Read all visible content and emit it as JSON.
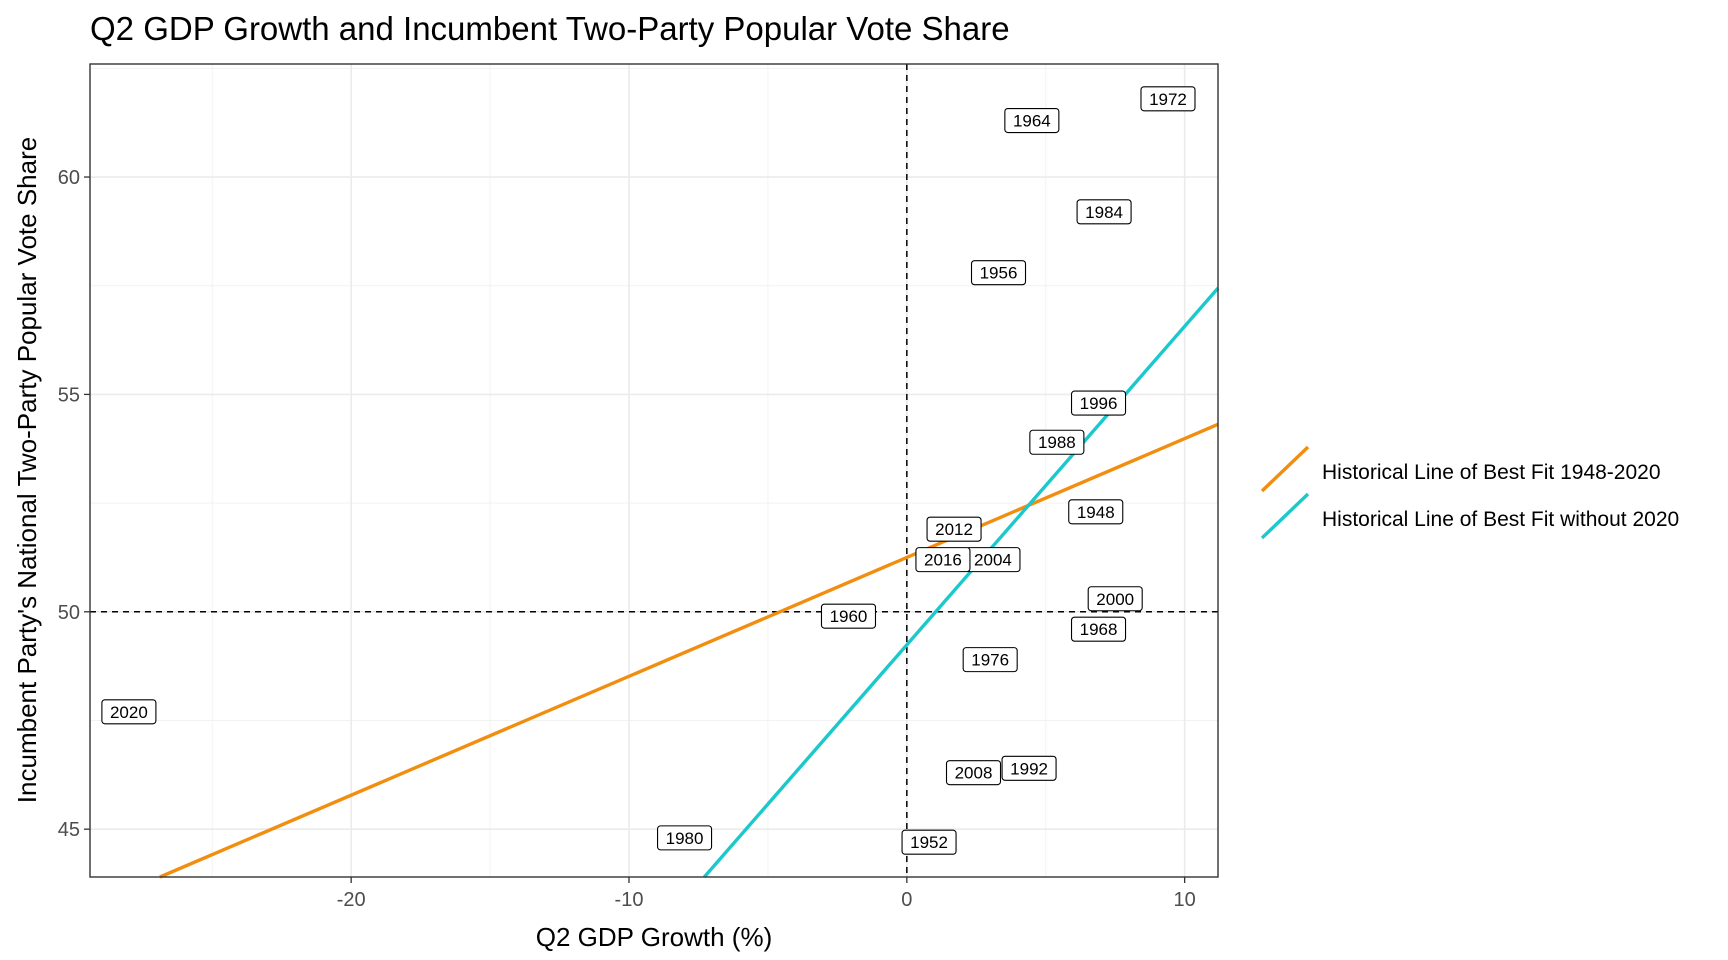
{
  "chart_data": {
    "type": "scatter",
    "title": "Q2 GDP Growth and Incumbent Two-Party Popular Vote Share",
    "xlabel": "Q2 GDP Growth (%)",
    "ylabel": "Incumbent Party's National Two-Party Popular Vote Share",
    "xlim": [
      -29.4,
      11.2
    ],
    "ylim": [
      43.9,
      62.6
    ],
    "x_ticks": [
      {
        "value": -20,
        "label": "-20"
      },
      {
        "value": -10,
        "label": "-10"
      },
      {
        "value": 0,
        "label": "0"
      },
      {
        "value": 10,
        "label": "10"
      }
    ],
    "y_ticks": [
      {
        "value": 45,
        "label": "45"
      },
      {
        "value": 50,
        "label": "50"
      },
      {
        "value": 55,
        "label": "55"
      },
      {
        "value": 60,
        "label": "60"
      }
    ],
    "grid": true,
    "reference_lines": {
      "vertical_x": 0,
      "horizontal_y": 50,
      "style": "dashed"
    },
    "points": [
      {
        "label": "1948",
        "x": 6.8,
        "y": 52.3
      },
      {
        "label": "1952",
        "x": 0.8,
        "y": 44.7
      },
      {
        "label": "1956",
        "x": 3.3,
        "y": 57.8
      },
      {
        "label": "1960",
        "x": -2.1,
        "y": 49.9
      },
      {
        "label": "1964",
        "x": 4.5,
        "y": 61.3
      },
      {
        "label": "1968",
        "x": 6.9,
        "y": 49.6
      },
      {
        "label": "1972",
        "x": 9.4,
        "y": 61.8
      },
      {
        "label": "1976",
        "x": 3.0,
        "y": 48.9
      },
      {
        "label": "1980",
        "x": -8.0,
        "y": 44.8
      },
      {
        "label": "1984",
        "x": 7.1,
        "y": 59.2
      },
      {
        "label": "1988",
        "x": 5.4,
        "y": 53.9
      },
      {
        "label": "1992",
        "x": 4.4,
        "y": 46.4
      },
      {
        "label": "1996",
        "x": 6.9,
        "y": 54.8
      },
      {
        "label": "2000",
        "x": 7.5,
        "y": 50.3
      },
      {
        "label": "2004",
        "x": 3.1,
        "y": 51.2
      },
      {
        "label": "2008",
        "x": 2.4,
        "y": 46.3
      },
      {
        "label": "2012",
        "x": 1.7,
        "y": 51.9
      },
      {
        "label": "2016",
        "x": 1.3,
        "y": 51.2
      },
      {
        "label": "2020",
        "x": -28.0,
        "y": 47.7
      }
    ],
    "series": [
      {
        "name": "Historical Line of Best Fit 1948-2020",
        "color": "#F28E0F",
        "intercept": 51.25,
        "slope": 0.2734
      },
      {
        "name": "Historical Line of Best Fit without 2020",
        "color": "#1BC8CC",
        "intercept": 49.24,
        "slope": 0.7326
      }
    ],
    "legend_position": "right"
  }
}
